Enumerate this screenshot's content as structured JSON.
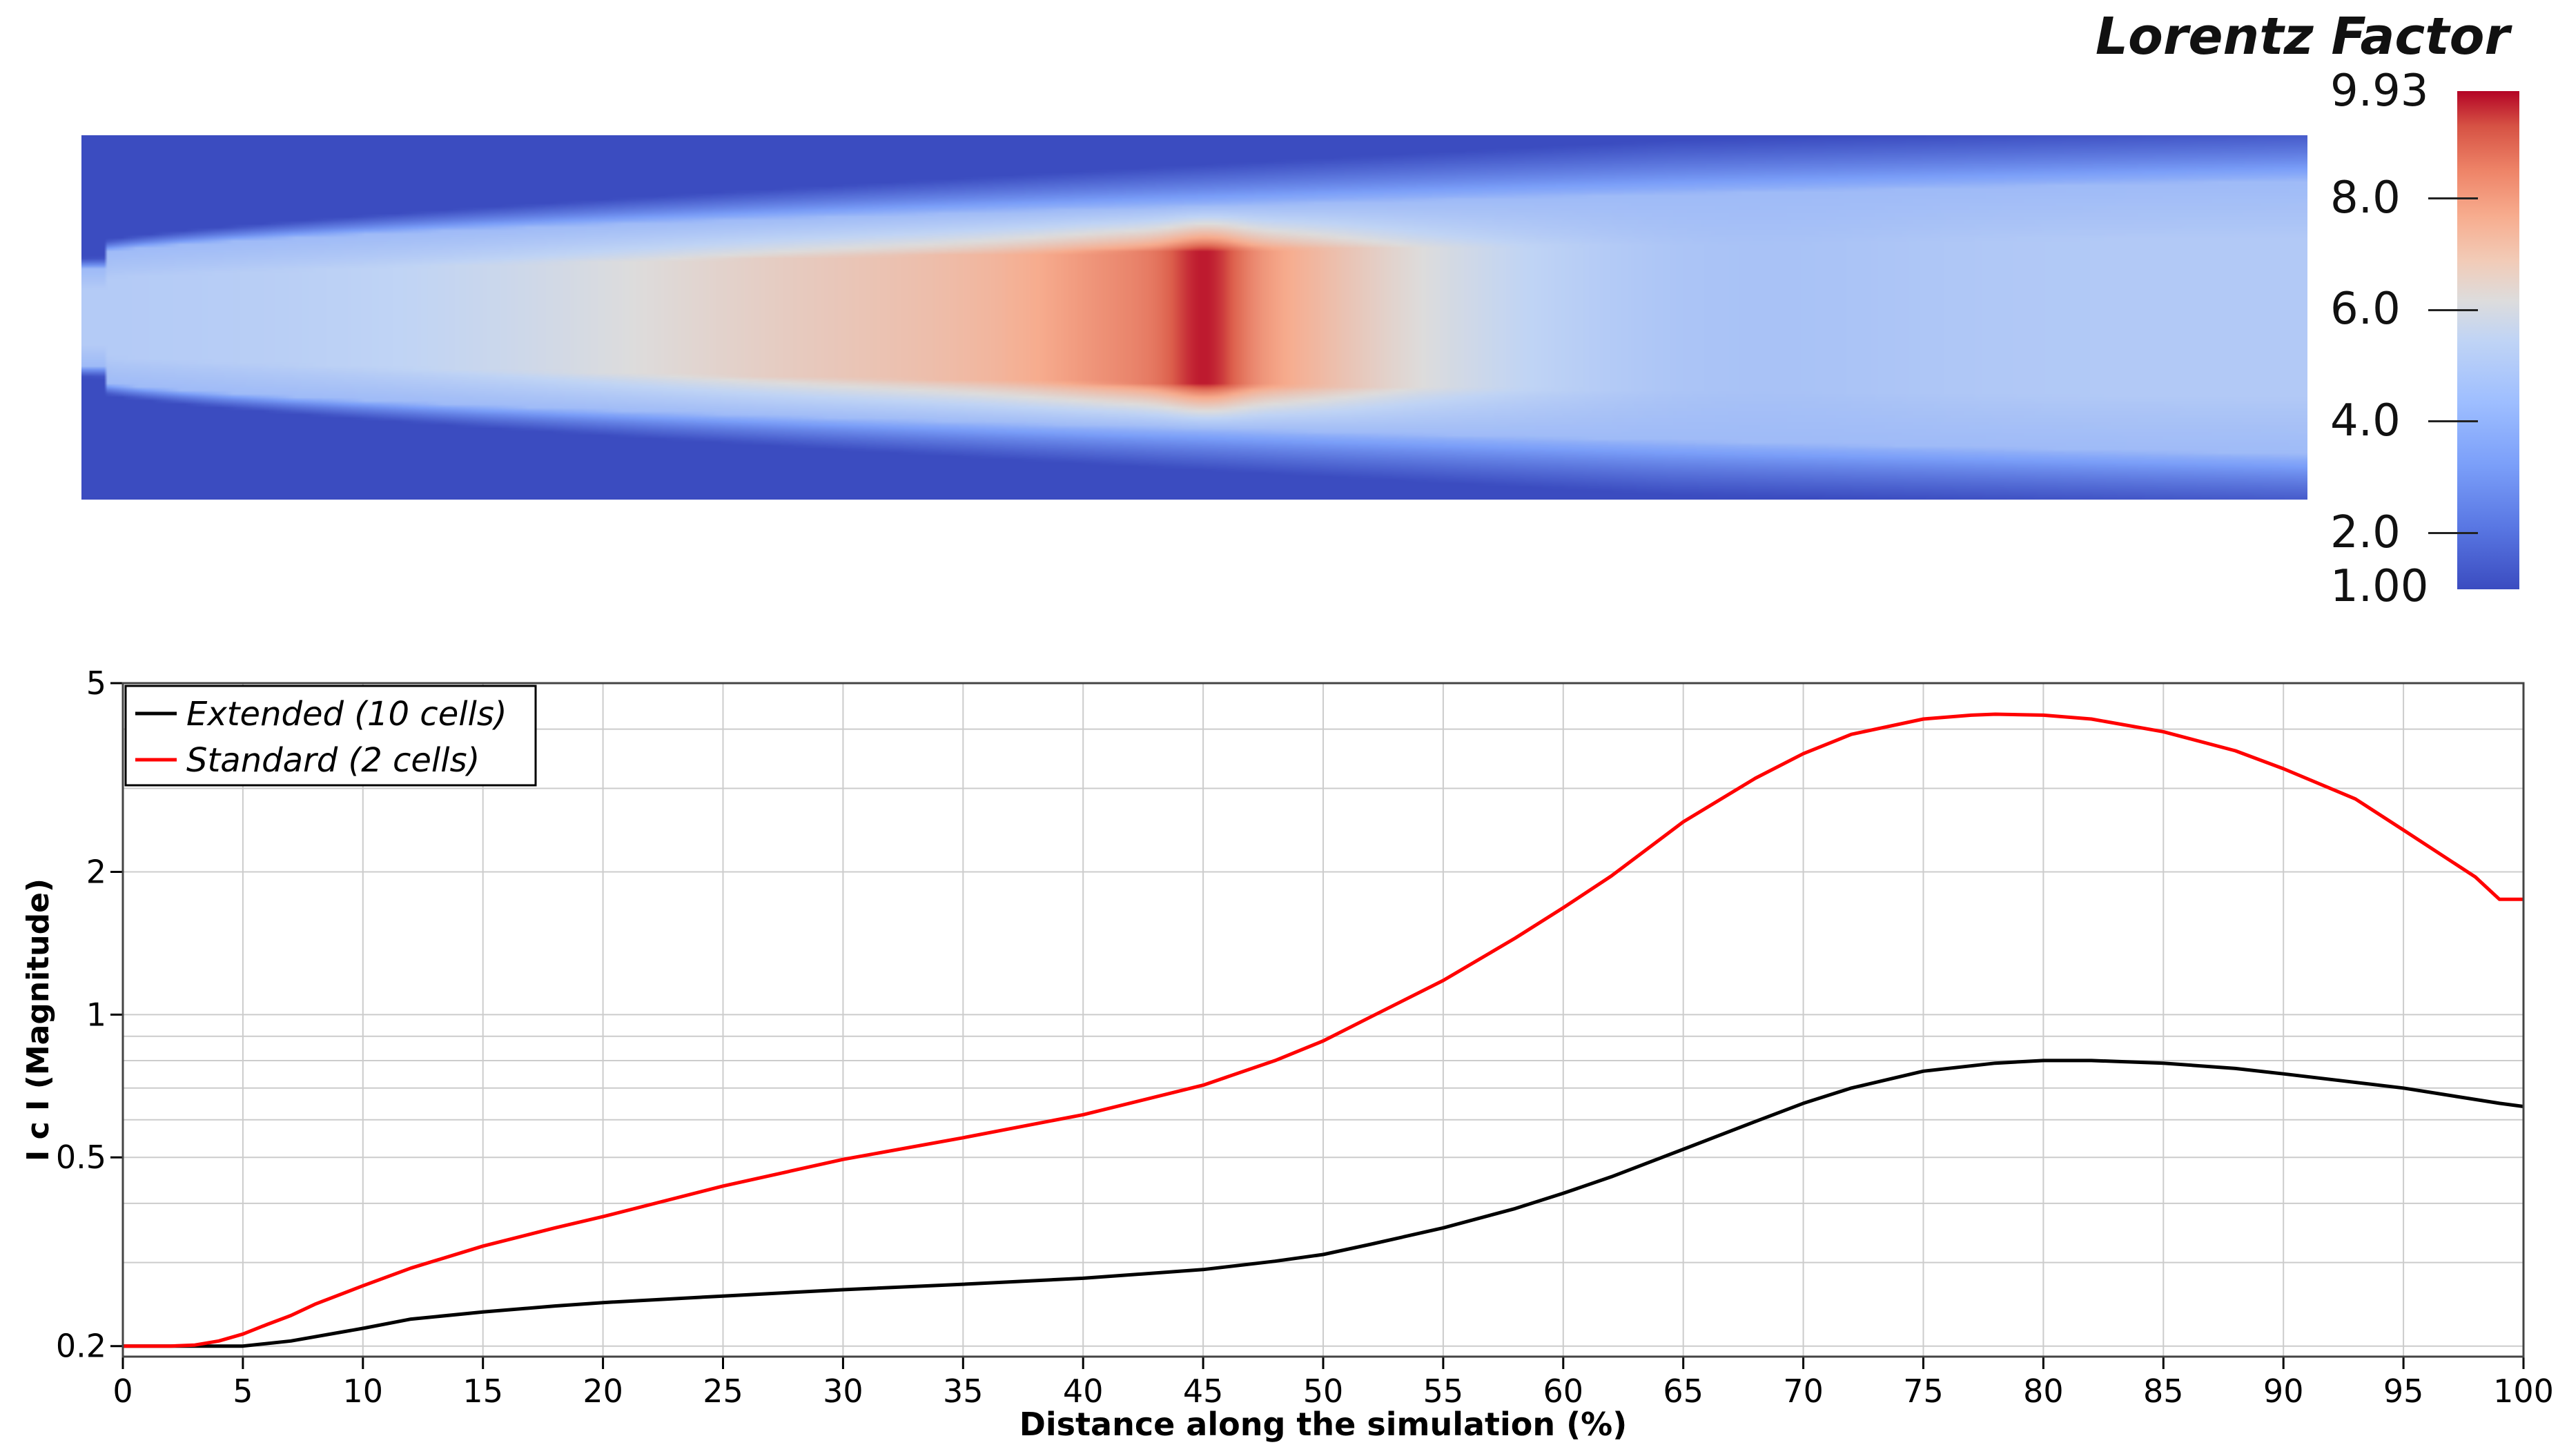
{
  "colorbar": {
    "title": "Lorentz Factor",
    "min_label": "1.00",
    "max_label": "9.93",
    "min": 1.0,
    "max": 9.93,
    "ticks": [
      {
        "value": 2.0,
        "label": "2.0"
      },
      {
        "value": 4.0,
        "label": "4.0"
      },
      {
        "value": 6.0,
        "label": "6.0"
      },
      {
        "value": 8.0,
        "label": "8.0"
      }
    ],
    "colormap": [
      "#3b4cc0",
      "#dddcdc",
      "#b40426"
    ]
  },
  "chart_data": {
    "type": "line",
    "xlabel": "Distance along the simulation (%)",
    "ylabel": "I c I  (Magnitude)",
    "xlim": [
      0,
      100
    ],
    "ylim": [
      0.19,
      5
    ],
    "yscale": "log",
    "grid": true,
    "legend_position": "top-left",
    "x_ticks": [
      0,
      5,
      10,
      15,
      20,
      25,
      30,
      35,
      40,
      45,
      50,
      55,
      60,
      65,
      70,
      75,
      80,
      85,
      90,
      95,
      100
    ],
    "y_ticks": [
      {
        "value": 0.2,
        "label": "0.2"
      },
      {
        "value": 0.5,
        "label": "0.5"
      },
      {
        "value": 1,
        "label": "1"
      },
      {
        "value": 2,
        "label": "2"
      },
      {
        "value": 5,
        "label": "5"
      }
    ],
    "series": [
      {
        "name": "Extended (10 cells)",
        "color": "#000000",
        "x": [
          0,
          3,
          5,
          7,
          10,
          12,
          15,
          18,
          20,
          25,
          30,
          35,
          40,
          45,
          48,
          50,
          52,
          55,
          58,
          60,
          62,
          65,
          68,
          70,
          72,
          75,
          78,
          80,
          82,
          85,
          88,
          90,
          95,
          99,
          100
        ],
        "y": [
          0.2,
          0.2,
          0.2,
          0.205,
          0.218,
          0.228,
          0.236,
          0.243,
          0.247,
          0.255,
          0.263,
          0.27,
          0.278,
          0.29,
          0.302,
          0.312,
          0.328,
          0.355,
          0.39,
          0.42,
          0.455,
          0.52,
          0.595,
          0.65,
          0.7,
          0.76,
          0.79,
          0.8,
          0.8,
          0.79,
          0.77,
          0.75,
          0.7,
          0.65,
          0.64
        ]
      },
      {
        "name": "Standard (2 cells)",
        "color": "#ff0000",
        "x": [
          0,
          2,
          3,
          4,
          5,
          6,
          7,
          8,
          10,
          12,
          15,
          18,
          20,
          25,
          30,
          35,
          40,
          45,
          48,
          50,
          52,
          55,
          58,
          60,
          62,
          65,
          68,
          70,
          72,
          75,
          77,
          78,
          80,
          82,
          85,
          88,
          90,
          93,
          95,
          98,
          99,
          100
        ],
        "y": [
          0.2,
          0.2,
          0.201,
          0.205,
          0.212,
          0.222,
          0.232,
          0.245,
          0.268,
          0.292,
          0.325,
          0.355,
          0.375,
          0.435,
          0.495,
          0.55,
          0.615,
          0.71,
          0.8,
          0.88,
          0.99,
          1.18,
          1.45,
          1.68,
          1.96,
          2.55,
          3.15,
          3.55,
          3.9,
          4.2,
          4.28,
          4.3,
          4.28,
          4.2,
          3.95,
          3.6,
          3.3,
          2.85,
          2.45,
          1.95,
          1.75,
          1.75
        ]
      }
    ]
  }
}
